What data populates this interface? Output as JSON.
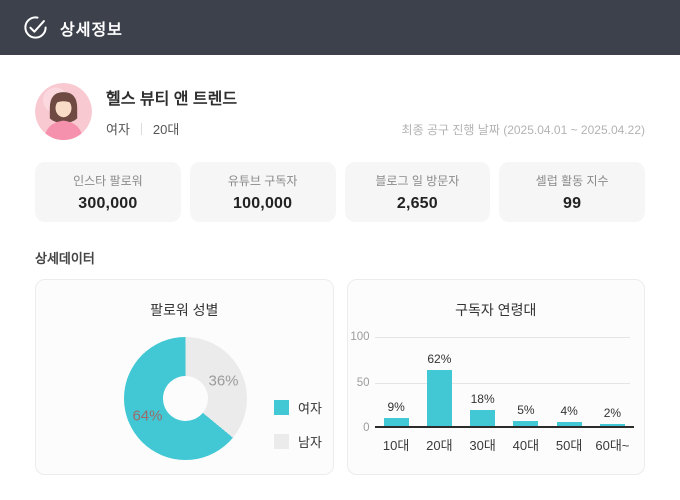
{
  "header": {
    "title": "상세정보"
  },
  "profile": {
    "name": "헬스 뷰티 앤 트렌드",
    "gender": "여자",
    "age_group": "20대",
    "date_note": "최종 공구 진행 날짜 (2025.04.01 ~ 2025.04.22)"
  },
  "stats": [
    {
      "label": "인스타 팔로워",
      "value": "300,000"
    },
    {
      "label": "유튜브 구독자",
      "value": "100,000"
    },
    {
      "label": "블로그 일 방문자",
      "value": "2,650"
    },
    {
      "label": "셀럽 활동 지수",
      "value": "99"
    }
  ],
  "section_title": "상세데이터",
  "colors": {
    "header_bg": "#3c414b",
    "accent_teal": "#41c8d4",
    "gray_slice": "#ebebeb"
  },
  "chart_data": [
    {
      "type": "pie",
      "donut": true,
      "title": "팔로워 성별",
      "labels": [
        "여자",
        "남자"
      ],
      "values": [
        64,
        36
      ],
      "unit": "%",
      "colors": [
        "#41c8d4",
        "#ebebeb"
      ],
      "label_colors": [
        "#9c6b6b",
        "#9b9b9b"
      ],
      "legend_position": "right",
      "start_angle_deg": 0,
      "clockwise_order": [
        "남자",
        "여자"
      ]
    },
    {
      "type": "bar",
      "title": "구독자 연령대",
      "categories": [
        "10대",
        "20대",
        "30대",
        "40대",
        "50대",
        "60대~"
      ],
      "values": [
        9,
        62,
        18,
        5,
        4,
        2
      ],
      "data_labels": [
        "9%",
        "62%",
        "18%",
        "5%",
        "4%",
        "2%"
      ],
      "unit": "%",
      "yticks": [
        0,
        50,
        100
      ],
      "ylim": [
        0,
        100
      ],
      "grid": true,
      "bar_color": "#41c8d4"
    }
  ]
}
